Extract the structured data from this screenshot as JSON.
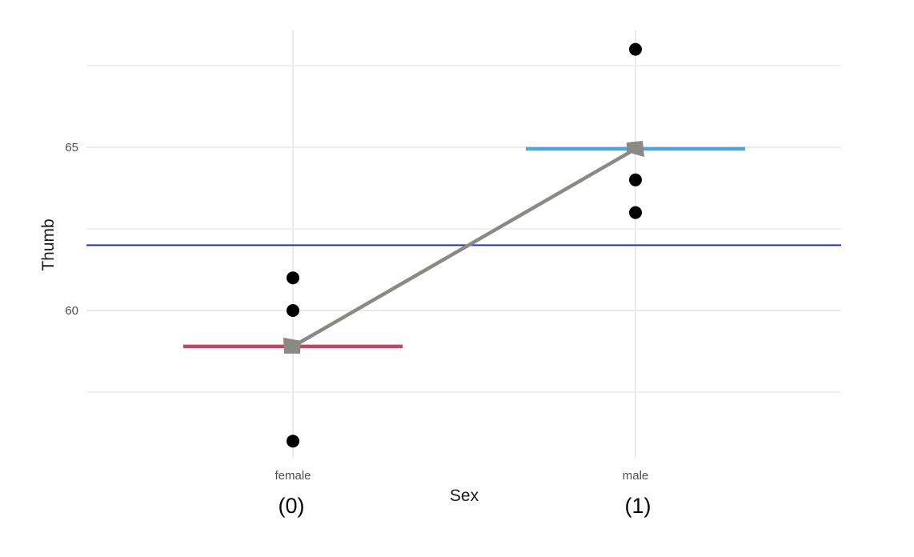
{
  "chart_data": {
    "type": "scatter",
    "title": "",
    "xlabel": "Sex",
    "ylabel": "Thumb",
    "categories": [
      "female",
      "male"
    ],
    "category_codes": [
      "(0)",
      "(1)"
    ],
    "ylim": [
      55.6,
      68.5
    ],
    "y_major_ticks": [
      60,
      65
    ],
    "y_minor_ticks": [
      57.5,
      62.5,
      67.5
    ],
    "grid": true,
    "points": [
      {
        "category": "female",
        "y": 61
      },
      {
        "category": "female",
        "y": 60
      },
      {
        "category": "female",
        "y": 56
      },
      {
        "category": "male",
        "y": 68
      },
      {
        "category": "male",
        "y": 64
      },
      {
        "category": "male",
        "y": 63
      }
    ],
    "group_means": [
      {
        "category": "female",
        "y": 58.9,
        "color": "#c0475c"
      },
      {
        "category": "male",
        "y": 64.95,
        "color": "#4aa8df"
      }
    ],
    "grand_mean": {
      "y": 62.0,
      "color": "#2233cc"
    },
    "model_line": {
      "from": {
        "category": "female",
        "y": 58.9
      },
      "to": {
        "category": "male",
        "y": 64.95
      },
      "color": "#8a8a85"
    },
    "point_color": "#000000",
    "grid_color": "#ebebeb"
  }
}
